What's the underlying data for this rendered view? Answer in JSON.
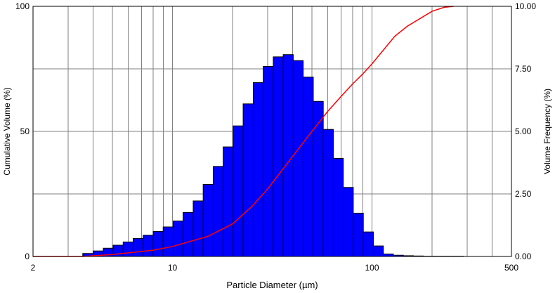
{
  "chart_data": {
    "type": "bar",
    "xlabel": "Particle Diameter (µm)",
    "ylabel_left": "Cumulative Volume (%)",
    "ylabel_right": "Volume Frequency (%)",
    "x_scale": "log",
    "xlim": [
      2,
      500
    ],
    "x_tick_labels": [
      "2",
      "10",
      "100",
      "500"
    ],
    "y_left_lim": [
      0,
      100
    ],
    "y_left_ticks": [
      "0",
      "50",
      "100"
    ],
    "y_right_lim": [
      0,
      10
    ],
    "y_right_ticks": [
      "0.00",
      "2.50",
      "5.00",
      "7.50",
      "10.00"
    ],
    "grid": true,
    "colors": {
      "bars": "#0000ff",
      "bar_edge": "#000000",
      "curve": "#ff0000",
      "grid": "#808080"
    },
    "series": [
      {
        "type": "bar",
        "axis": "right",
        "bin_edges": [
          3.55,
          4.0,
          4.5,
          5.04,
          5.66,
          6.35,
          7.13,
          8.0,
          8.98,
          10.08,
          11.3,
          12.7,
          14.25,
          16.0,
          17.95,
          20.15,
          22.6,
          25.4,
          28.5,
          32.0,
          35.9,
          40.3,
          45.2,
          50.8,
          57.0,
          64.0,
          71.8,
          80.6,
          90.5,
          101.6,
          114.0,
          128.0,
          143.6,
          161.2,
          181.0,
          203.2,
          228.0,
          256.0,
          287.3
        ],
        "values": [
          0.12,
          0.22,
          0.33,
          0.45,
          0.58,
          0.72,
          0.85,
          1.0,
          1.18,
          1.42,
          1.76,
          2.22,
          2.88,
          3.6,
          4.38,
          5.22,
          6.1,
          6.95,
          7.6,
          7.98,
          8.07,
          7.83,
          7.17,
          6.2,
          5.08,
          3.92,
          2.76,
          1.73,
          0.98,
          0.42,
          0.1,
          0.05,
          0.03,
          0.02,
          0.01,
          0.01,
          0.01,
          0.01
        ]
      },
      {
        "type": "line",
        "axis": "left",
        "x": [
          2,
          3.55,
          5,
          8,
          10,
          15,
          20,
          25,
          30,
          40,
          50,
          60,
          70,
          80,
          90,
          100,
          130,
          150,
          200,
          230,
          256
        ],
        "y": [
          0,
          0,
          0.8,
          2.5,
          4,
          8,
          13,
          20,
          27,
          40,
          50,
          58,
          64,
          69,
          73,
          77,
          88,
          92,
          98,
          99.6,
          100
        ]
      }
    ]
  }
}
